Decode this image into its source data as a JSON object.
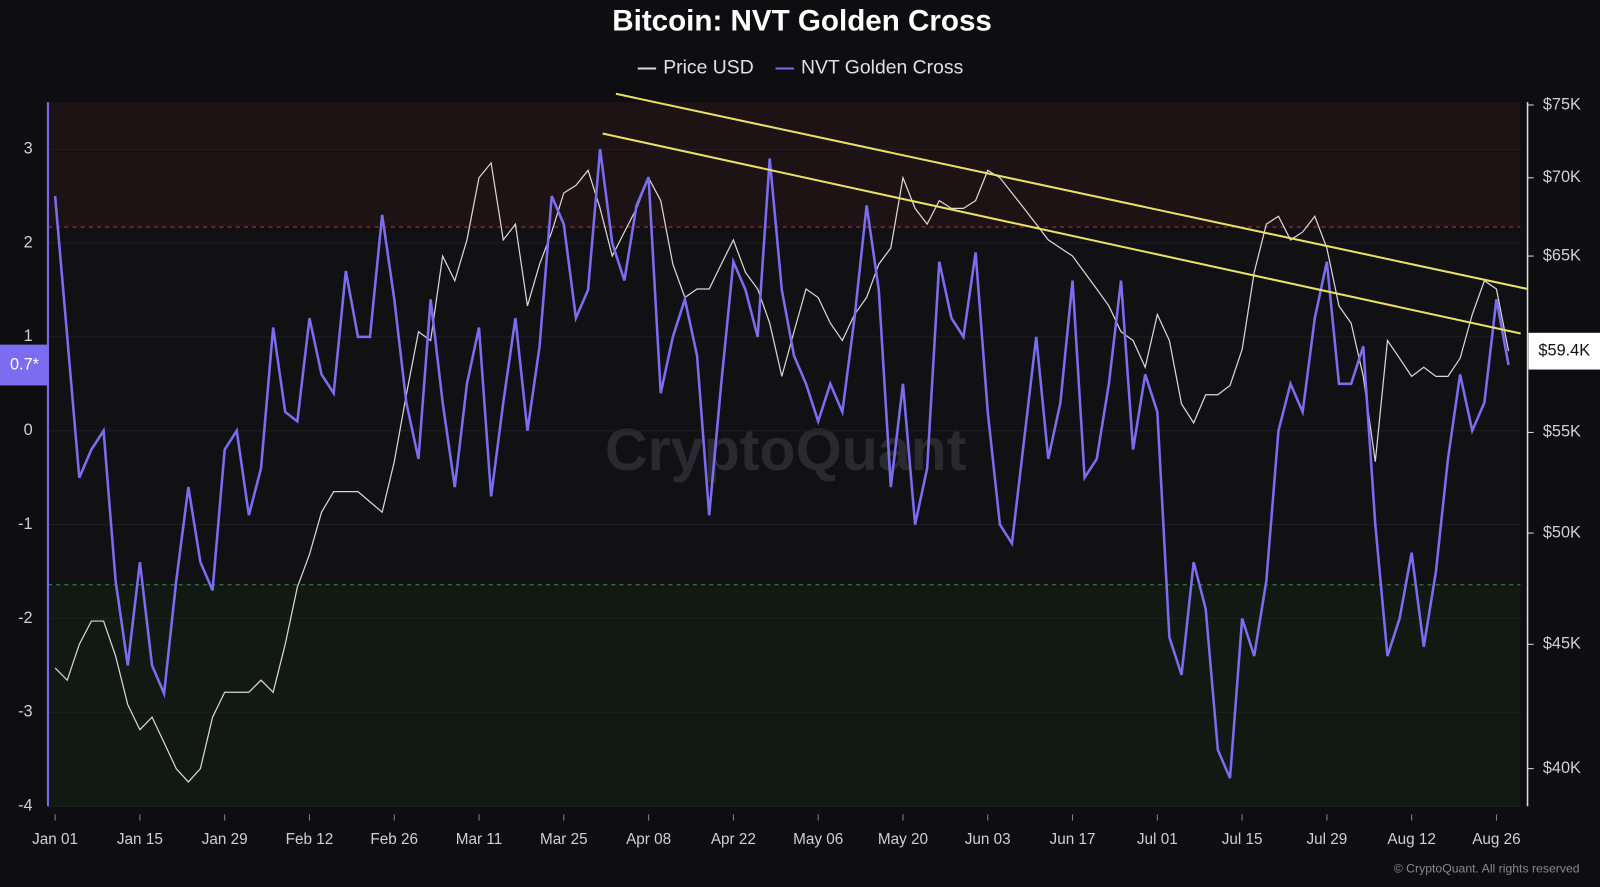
{
  "chart_data": {
    "type": "line",
    "title": "Bitcoin: NVT Golden Cross",
    "categories": [
      "Jan 01",
      null,
      null,
      null,
      null,
      null,
      null,
      "Jan 15",
      null,
      null,
      null,
      null,
      null,
      null,
      "Jan 29",
      null,
      null,
      null,
      null,
      null,
      null,
      "Feb 12",
      null,
      null,
      null,
      null,
      null,
      null,
      "Feb 26",
      null,
      null,
      null,
      null,
      null,
      null,
      "Mar 11",
      null,
      null,
      null,
      null,
      null,
      null,
      "Mar 25",
      null,
      null,
      null,
      null,
      null,
      null,
      "Apr 08",
      null,
      null,
      null,
      null,
      null,
      null,
      "Apr 22",
      null,
      null,
      null,
      null,
      null,
      null,
      "May 06",
      null,
      null,
      null,
      null,
      null,
      null,
      "May 20",
      null,
      null,
      null,
      null,
      null,
      null,
      "Jun 03",
      null,
      null,
      null,
      null,
      null,
      null,
      "Jun 17",
      null,
      null,
      null,
      null,
      null,
      null,
      "Jul 01",
      null,
      null,
      null,
      null,
      null,
      null,
      "Jul 15",
      null,
      null,
      null,
      null,
      null,
      null,
      "Jul 29",
      null,
      null,
      null,
      null,
      null,
      null,
      "Aug 12",
      null,
      null,
      null,
      null,
      null,
      null,
      "Aug 26",
      null
    ],
    "series": [
      {
        "name": "Price USD",
        "color": "#d9d9d9",
        "axis": "y2",
        "values": [
          44000,
          43500,
          45000,
          46000,
          46000,
          44500,
          42500,
          41500,
          42000,
          41000,
          40000,
          39500,
          40000,
          42000,
          43000,
          43000,
          43000,
          43500,
          43000,
          45000,
          47500,
          49000,
          51000,
          52000,
          52000,
          52000,
          51500,
          51000,
          53500,
          57000,
          60500,
          60000,
          65000,
          63500,
          66000,
          70000,
          71000,
          66000,
          67000,
          62000,
          64500,
          66500,
          69000,
          69500,
          70500,
          68000,
          65000,
          66500,
          68000,
          70000,
          68500,
          64500,
          62500,
          63000,
          63000,
          64500,
          66000,
          64000,
          63000,
          61000,
          58000,
          60500,
          63000,
          62500,
          61000,
          60000,
          61500,
          62500,
          64500,
          65500,
          70000,
          68000,
          67000,
          68500,
          68000,
          68000,
          68500,
          70500,
          70000,
          69000,
          68000,
          67000,
          66000,
          65500,
          65000,
          64000,
          63000,
          62000,
          60500,
          60000,
          58500,
          61500,
          60000,
          56500,
          55500,
          57000,
          57000,
          57500,
          59500,
          64000,
          67000,
          67500,
          66000,
          66500,
          67500,
          65500,
          62000,
          61000,
          58000,
          53500,
          60000,
          59000,
          58000,
          58500,
          58000,
          58000,
          59000,
          61500,
          63500,
          63000,
          59400
        ]
      },
      {
        "name": "NVT Golden Cross",
        "color": "#7b6cf0",
        "values": [
          2.5,
          1.0,
          -0.5,
          -0.2,
          0.0,
          -1.6,
          -2.5,
          -1.4,
          -2.5,
          -2.8,
          -1.6,
          -0.6,
          -1.4,
          -1.7,
          -0.2,
          0.0,
          -0.9,
          -0.4,
          1.1,
          0.2,
          0.1,
          1.2,
          0.6,
          0.4,
          1.7,
          1.0,
          1.0,
          2.3,
          1.4,
          0.3,
          -0.3,
          1.4,
          0.3,
          -0.6,
          0.5,
          1.1,
          -0.7,
          0.3,
          1.2,
          0.0,
          0.9,
          2.5,
          2.2,
          1.2,
          1.5,
          3.0,
          2.0,
          1.6,
          2.4,
          2.7,
          0.4,
          1.0,
          1.4,
          0.8,
          -0.9,
          0.5,
          1.8,
          1.5,
          1.0,
          2.9,
          1.5,
          0.8,
          0.5,
          0.1,
          0.5,
          0.2,
          1.2,
          2.4,
          1.5,
          -0.6,
          0.5,
          -1.0,
          -0.4,
          1.8,
          1.2,
          1.0,
          1.9,
          0.2,
          -1.0,
          -1.2,
          -0.1,
          1.0,
          -0.3,
          0.3,
          1.6,
          -0.5,
          -0.3,
          0.5,
          1.6,
          -0.2,
          0.6,
          0.2,
          -2.2,
          -2.6,
          -1.4,
          -1.9,
          -3.4,
          -3.7,
          -2.0,
          -2.4,
          -1.6,
          0.0,
          0.5,
          0.2,
          1.2,
          1.8,
          0.5,
          0.5,
          0.9,
          -1.0,
          -2.4,
          -2.0,
          -1.3,
          -2.3,
          -1.5,
          -0.3,
          0.6,
          0.0,
          0.3,
          1.4,
          0.7
        ]
      }
    ],
    "ylim": [
      -4,
      3.5
    ],
    "yticks": [
      -4,
      -3,
      -2,
      -1,
      0,
      1,
      2,
      3
    ],
    "y2lim": [
      38600,
      75200
    ],
    "y2log": true,
    "y2ticks": [
      {
        "value": 40000,
        "label": "$40K"
      },
      {
        "value": 45000,
        "label": "$45K"
      },
      {
        "value": 50000,
        "label": "$50K"
      },
      {
        "value": 55000,
        "label": "$55K"
      },
      {
        "value": 65000,
        "label": "$65K"
      },
      {
        "value": 70000,
        "label": "$70K"
      },
      {
        "value": 75000,
        "label": "$75K"
      }
    ],
    "thresholds": {
      "upper": 2.17,
      "lower": -1.64
    },
    "trendlines": [
      {
        "from": [
          46.3,
          75800
        ],
        "to": [
          121.6,
          63000
        ],
        "color": "#e8e06a"
      },
      {
        "from": [
          45.2,
          73000
        ],
        "to": [
          121.0,
          60400
        ],
        "color": "#e8e06a"
      }
    ],
    "current_labels": {
      "y": "0.7*",
      "y2": "$59.4K"
    },
    "watermark": "CryptoQuant",
    "credit": "© CryptoQuant. All rights reserved"
  }
}
